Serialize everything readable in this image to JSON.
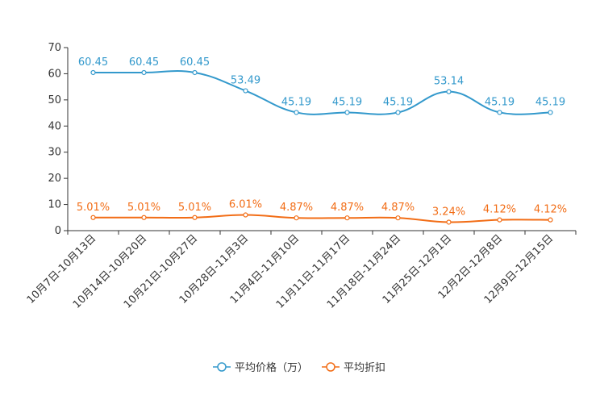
{
  "chart_data": {
    "type": "line",
    "title": "",
    "xlabel": "",
    "ylabel": "",
    "ylim": [
      0,
      70
    ],
    "yticks": [
      0,
      10,
      20,
      30,
      40,
      50,
      60,
      70
    ],
    "grid": false,
    "legend_position": "bottom",
    "categories": [
      "10月7日-10月13日",
      "10月14日-10月20日",
      "10月21日-10月27日",
      "10月28日-11月3日",
      "11月4日-11月10日",
      "11月11日-11月17日",
      "11月18日-11月24日",
      "11月25日-12月1日",
      "12月2日-12月8日",
      "12月9日-12月15日"
    ],
    "series": [
      {
        "name": "平均价格（万）",
        "color": "#3399cc",
        "values": [
          60.45,
          60.45,
          60.45,
          53.49,
          45.19,
          45.19,
          45.19,
          53.14,
          45.19,
          45.19
        ],
        "labels": [
          "60.45",
          "60.45",
          "60.45",
          "53.49",
          "45.19",
          "45.19",
          "45.19",
          "53.14",
          "45.19",
          "45.19"
        ]
      },
      {
        "name": "平均折扣",
        "color": "#f26d16",
        "values": [
          5.01,
          5.01,
          5.01,
          6.01,
          4.87,
          4.87,
          4.87,
          3.24,
          4.12,
          4.12
        ],
        "labels": [
          "5.01%",
          "5.01%",
          "5.01%",
          "6.01%",
          "4.87%",
          "4.87%",
          "4.87%",
          "3.24%",
          "4.12%",
          "4.12%"
        ]
      }
    ]
  }
}
